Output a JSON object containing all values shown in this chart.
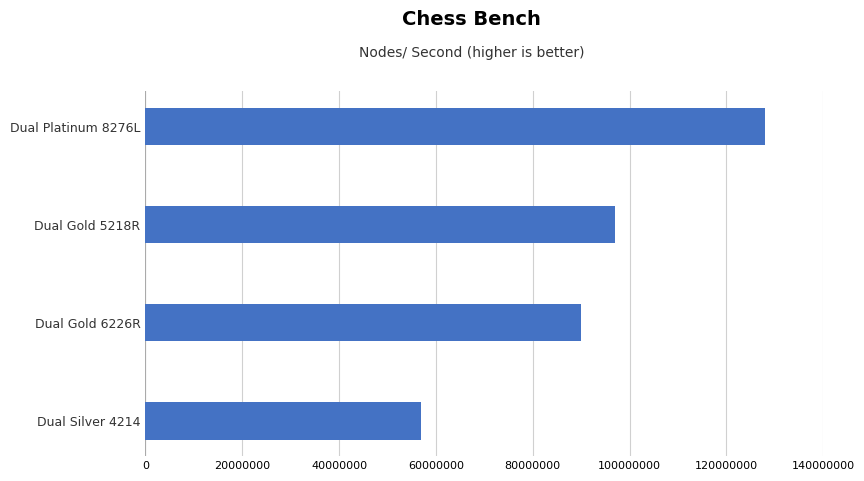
{
  "title": "Chess Bench",
  "subtitle": "Nodes/ Second (higher is better)",
  "categories": [
    "Dual Silver 4214",
    "Dual Gold 6226R",
    "Dual Gold 5218R",
    "Dual Platinum 8276L"
  ],
  "values": [
    57000000,
    90000000,
    97000000,
    128000000
  ],
  "bar_color": "#4472C4",
  "xlim": [
    0,
    140000000
  ],
  "xticks": [
    0,
    20000000,
    40000000,
    60000000,
    80000000,
    100000000,
    120000000,
    140000000
  ],
  "background_color": "#ffffff",
  "grid_color": "#d0d0d0",
  "title_fontsize": 14,
  "subtitle_fontsize": 10,
  "label_fontsize": 9,
  "tick_fontsize": 8,
  "bar_height": 0.38
}
